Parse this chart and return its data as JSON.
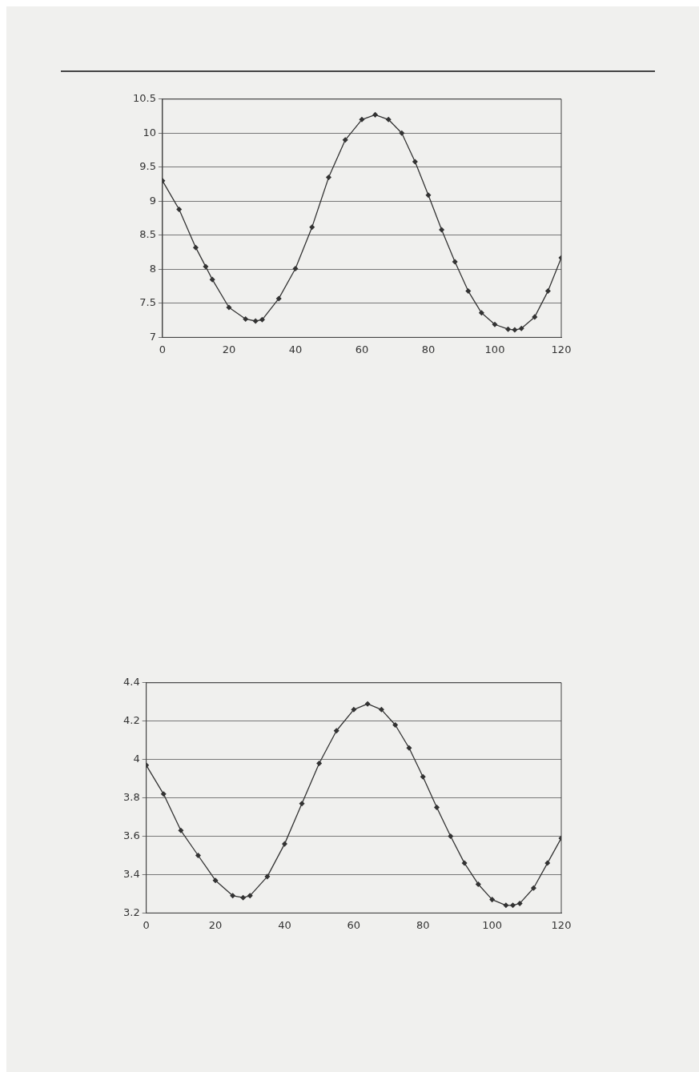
{
  "chart_data": [
    {
      "type": "line",
      "x": [
        0,
        5,
        10,
        13,
        15,
        20,
        25,
        28,
        30,
        35,
        40,
        45,
        50,
        55,
        60,
        64,
        68,
        72,
        76,
        80,
        84,
        88,
        92,
        96,
        100,
        104,
        106,
        108,
        112,
        116,
        120
      ],
      "values": [
        9.3,
        8.88,
        8.32,
        8.04,
        7.85,
        7.44,
        7.27,
        7.24,
        7.26,
        7.57,
        8.01,
        8.62,
        9.35,
        9.9,
        10.2,
        10.27,
        10.2,
        10.0,
        9.58,
        9.09,
        8.58,
        8.11,
        7.68,
        7.36,
        7.19,
        7.12,
        7.11,
        7.13,
        7.3,
        7.68,
        8.17
      ],
      "color": "#333333",
      "marker": "diamond",
      "line_style": "solid",
      "grid": "y",
      "xlim": [
        0,
        120
      ],
      "xticks": [
        0,
        20,
        40,
        60,
        80,
        100,
        120
      ],
      "ylim": [
        7,
        10.5
      ],
      "yticks": [
        7,
        7.5,
        8,
        8.5,
        9,
        9.5,
        10,
        10.5
      ]
    },
    {
      "type": "line",
      "x": [
        0,
        5,
        10,
        15,
        20,
        25,
        28,
        30,
        35,
        40,
        45,
        50,
        55,
        60,
        64,
        68,
        72,
        76,
        80,
        84,
        88,
        92,
        96,
        100,
        104,
        106,
        108,
        112,
        116,
        120
      ],
      "values": [
        3.97,
        3.82,
        3.63,
        3.5,
        3.37,
        3.29,
        3.28,
        3.29,
        3.39,
        3.56,
        3.77,
        3.98,
        4.15,
        4.26,
        4.29,
        4.26,
        4.18,
        4.06,
        3.91,
        3.75,
        3.6,
        3.46,
        3.35,
        3.27,
        3.24,
        3.24,
        3.25,
        3.33,
        3.46,
        3.59
      ],
      "color": "#333333",
      "marker": "diamond",
      "line_style": "solid",
      "grid": "y",
      "xlim": [
        0,
        120
      ],
      "xticks": [
        0,
        20,
        40,
        60,
        80,
        100,
        120
      ],
      "ylim": [
        3.2,
        4.4
      ],
      "yticks": [
        3.2,
        3.4,
        3.6,
        3.8,
        4,
        4.2,
        4.4
      ]
    }
  ]
}
